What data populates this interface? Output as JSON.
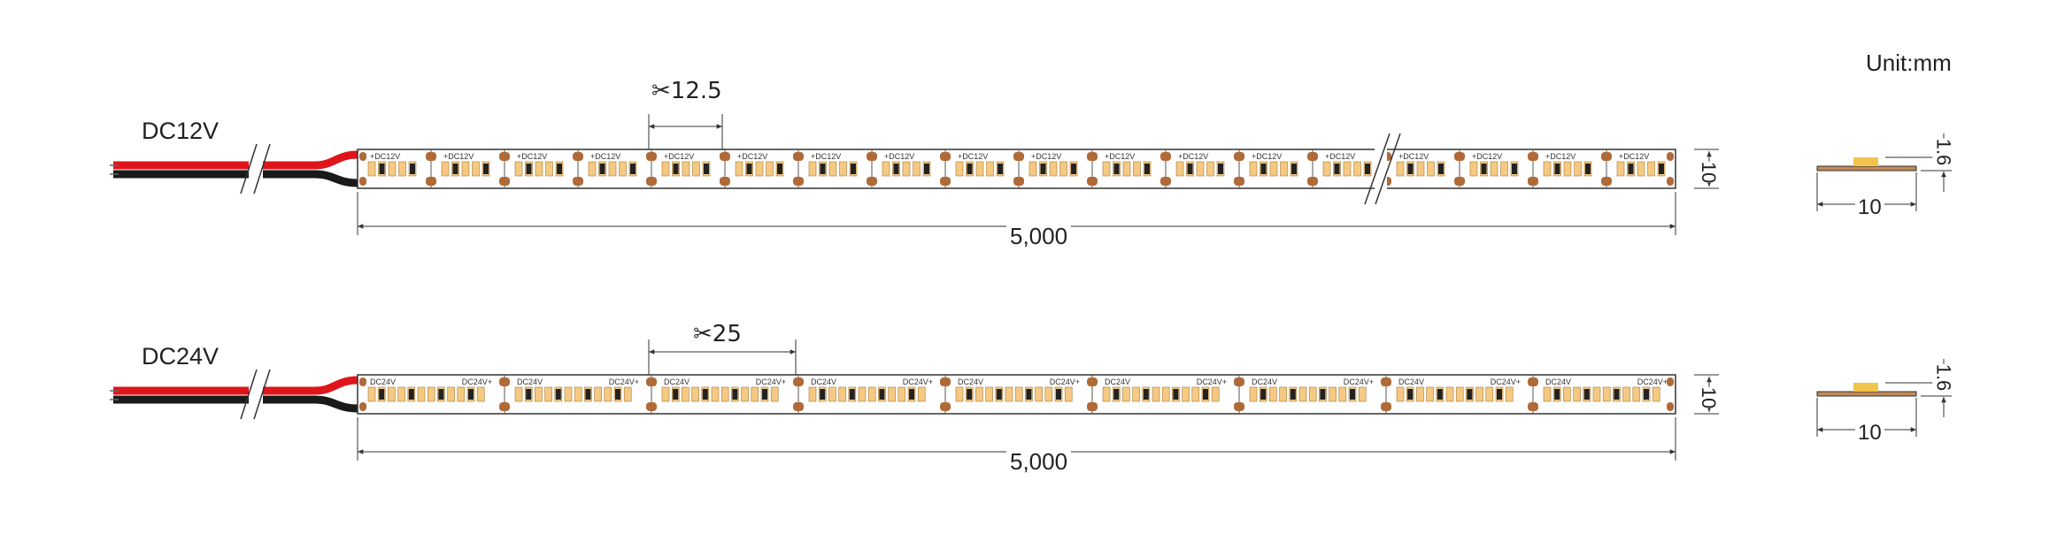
{
  "unit_label": "Unit:mm",
  "colors": {
    "red_wire": "#e0141b",
    "black_wire": "#1a1a1a",
    "copper_pad": "#b06a38",
    "led_body": "#f6c983",
    "outline": "#333333",
    "base": "#c08a55"
  },
  "strips": [
    {
      "voltage": "DC12V",
      "cut_interval": "12.5",
      "cut_icon": "scissors-icon",
      "segment_mark": "+DC12V",
      "length": "5,000",
      "width": "10",
      "profile_width": "10",
      "profile_height": "1.6"
    },
    {
      "voltage": "DC24V",
      "cut_interval": "25",
      "cut_icon": "scissors-icon",
      "segment_mark": "DC24V",
      "length": "5,000",
      "width": "10",
      "profile_width": "10",
      "profile_height": "1.6"
    }
  ]
}
